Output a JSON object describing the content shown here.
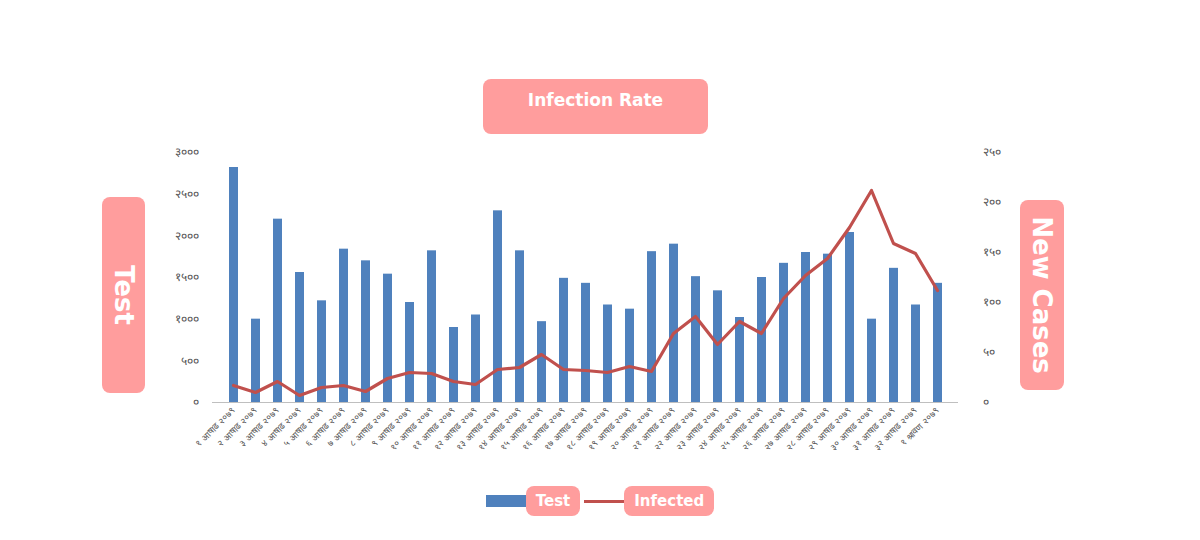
{
  "chart_data": {
    "type": "bar",
    "title": "Infection Rate",
    "categories": [
      "१ आषाढ २०७९",
      "२ आषाढ २०७९",
      "३ आषाढ २०७९",
      "४ आषाढ २०७९",
      "५ आषाढ २०७९",
      "६ आषाढ २०७९",
      "७ आषाढ २०७९",
      "८ आषाढ २०७९",
      "९ आषाढ २०७९",
      "१० आषाढ २०७९",
      "११ आषाढ २०७९",
      "१२ आषाढ २०७९",
      "१३ आषाढ २०७९",
      "१४ आषाढ २०७९",
      "१५ आषाढ २०७९",
      "१६ आषाढ २०७९",
      "१७ आषाढ २०७९",
      "१८ आषाढ २०७९",
      "१९ आषाढ २०७९",
      "२० आषाढ २०७९",
      "२१ आषाढ २०७९",
      "२२ आषाढ २०७९",
      "२३ आषाढ २०७९",
      "२४ आषाढ २०७९",
      "२५ आषाढ २०७९",
      "२६ आषाढ २०७९",
      "२७ आषाढ २०७९",
      "२८ आषाढ २०७९",
      "२९ आषाढ २०७९",
      "३० आषाढ २०७९",
      "३१ आषाढ २०७९",
      "३२ आषाढ २०७९",
      "१ श्रावण २०७९"
    ],
    "series": [
      {
        "name": "Test",
        "type": "bar",
        "color": "#4f81bd",
        "values": [
          2820,
          1000,
          2200,
          1560,
          1220,
          1840,
          1700,
          1540,
          1200,
          1820,
          900,
          1050,
          2300,
          1820,
          970,
          1490,
          1430,
          1170,
          1120,
          1810,
          1900,
          1510,
          1340,
          1020,
          1500,
          1670,
          1800,
          1780,
          2040,
          1000,
          1610,
          1170,
          1430
        ]
      },
      {
        "name": "Infected",
        "type": "line",
        "color": "#c0504d",
        "axis": "y2",
        "values": [
          17,
          10,
          21,
          7,
          15,
          17,
          11,
          24,
          30,
          29,
          21,
          18,
          33,
          35,
          48,
          33,
          32,
          30,
          36,
          31,
          69,
          86,
          58,
          81,
          69,
          104,
          127,
          144,
          175,
          212,
          159,
          149,
          112
        ]
      }
    ],
    "y_label": "Test",
    "y2_label": "New Cases",
    "ylim": [
      0,
      3000
    ],
    "yticks": [
      {
        "value": 0,
        "label": "०"
      },
      {
        "value": 500,
        "label": "५००"
      },
      {
        "value": 1000,
        "label": "१०००"
      },
      {
        "value": 1500,
        "label": "१५००"
      },
      {
        "value": 2000,
        "label": "२०००"
      },
      {
        "value": 2500,
        "label": "२५००"
      },
      {
        "value": 3000,
        "label": "३०००"
      }
    ],
    "y2lim": [
      0,
      250
    ],
    "y2ticks": [
      {
        "value": 0,
        "label": "०"
      },
      {
        "value": 50,
        "label": "५०"
      },
      {
        "value": 100,
        "label": "१००"
      },
      {
        "value": 150,
        "label": "१५०"
      },
      {
        "value": 200,
        "label": "२००"
      },
      {
        "value": 250,
        "label": "२५०"
      }
    ],
    "legend": "bottom",
    "grid": false
  }
}
